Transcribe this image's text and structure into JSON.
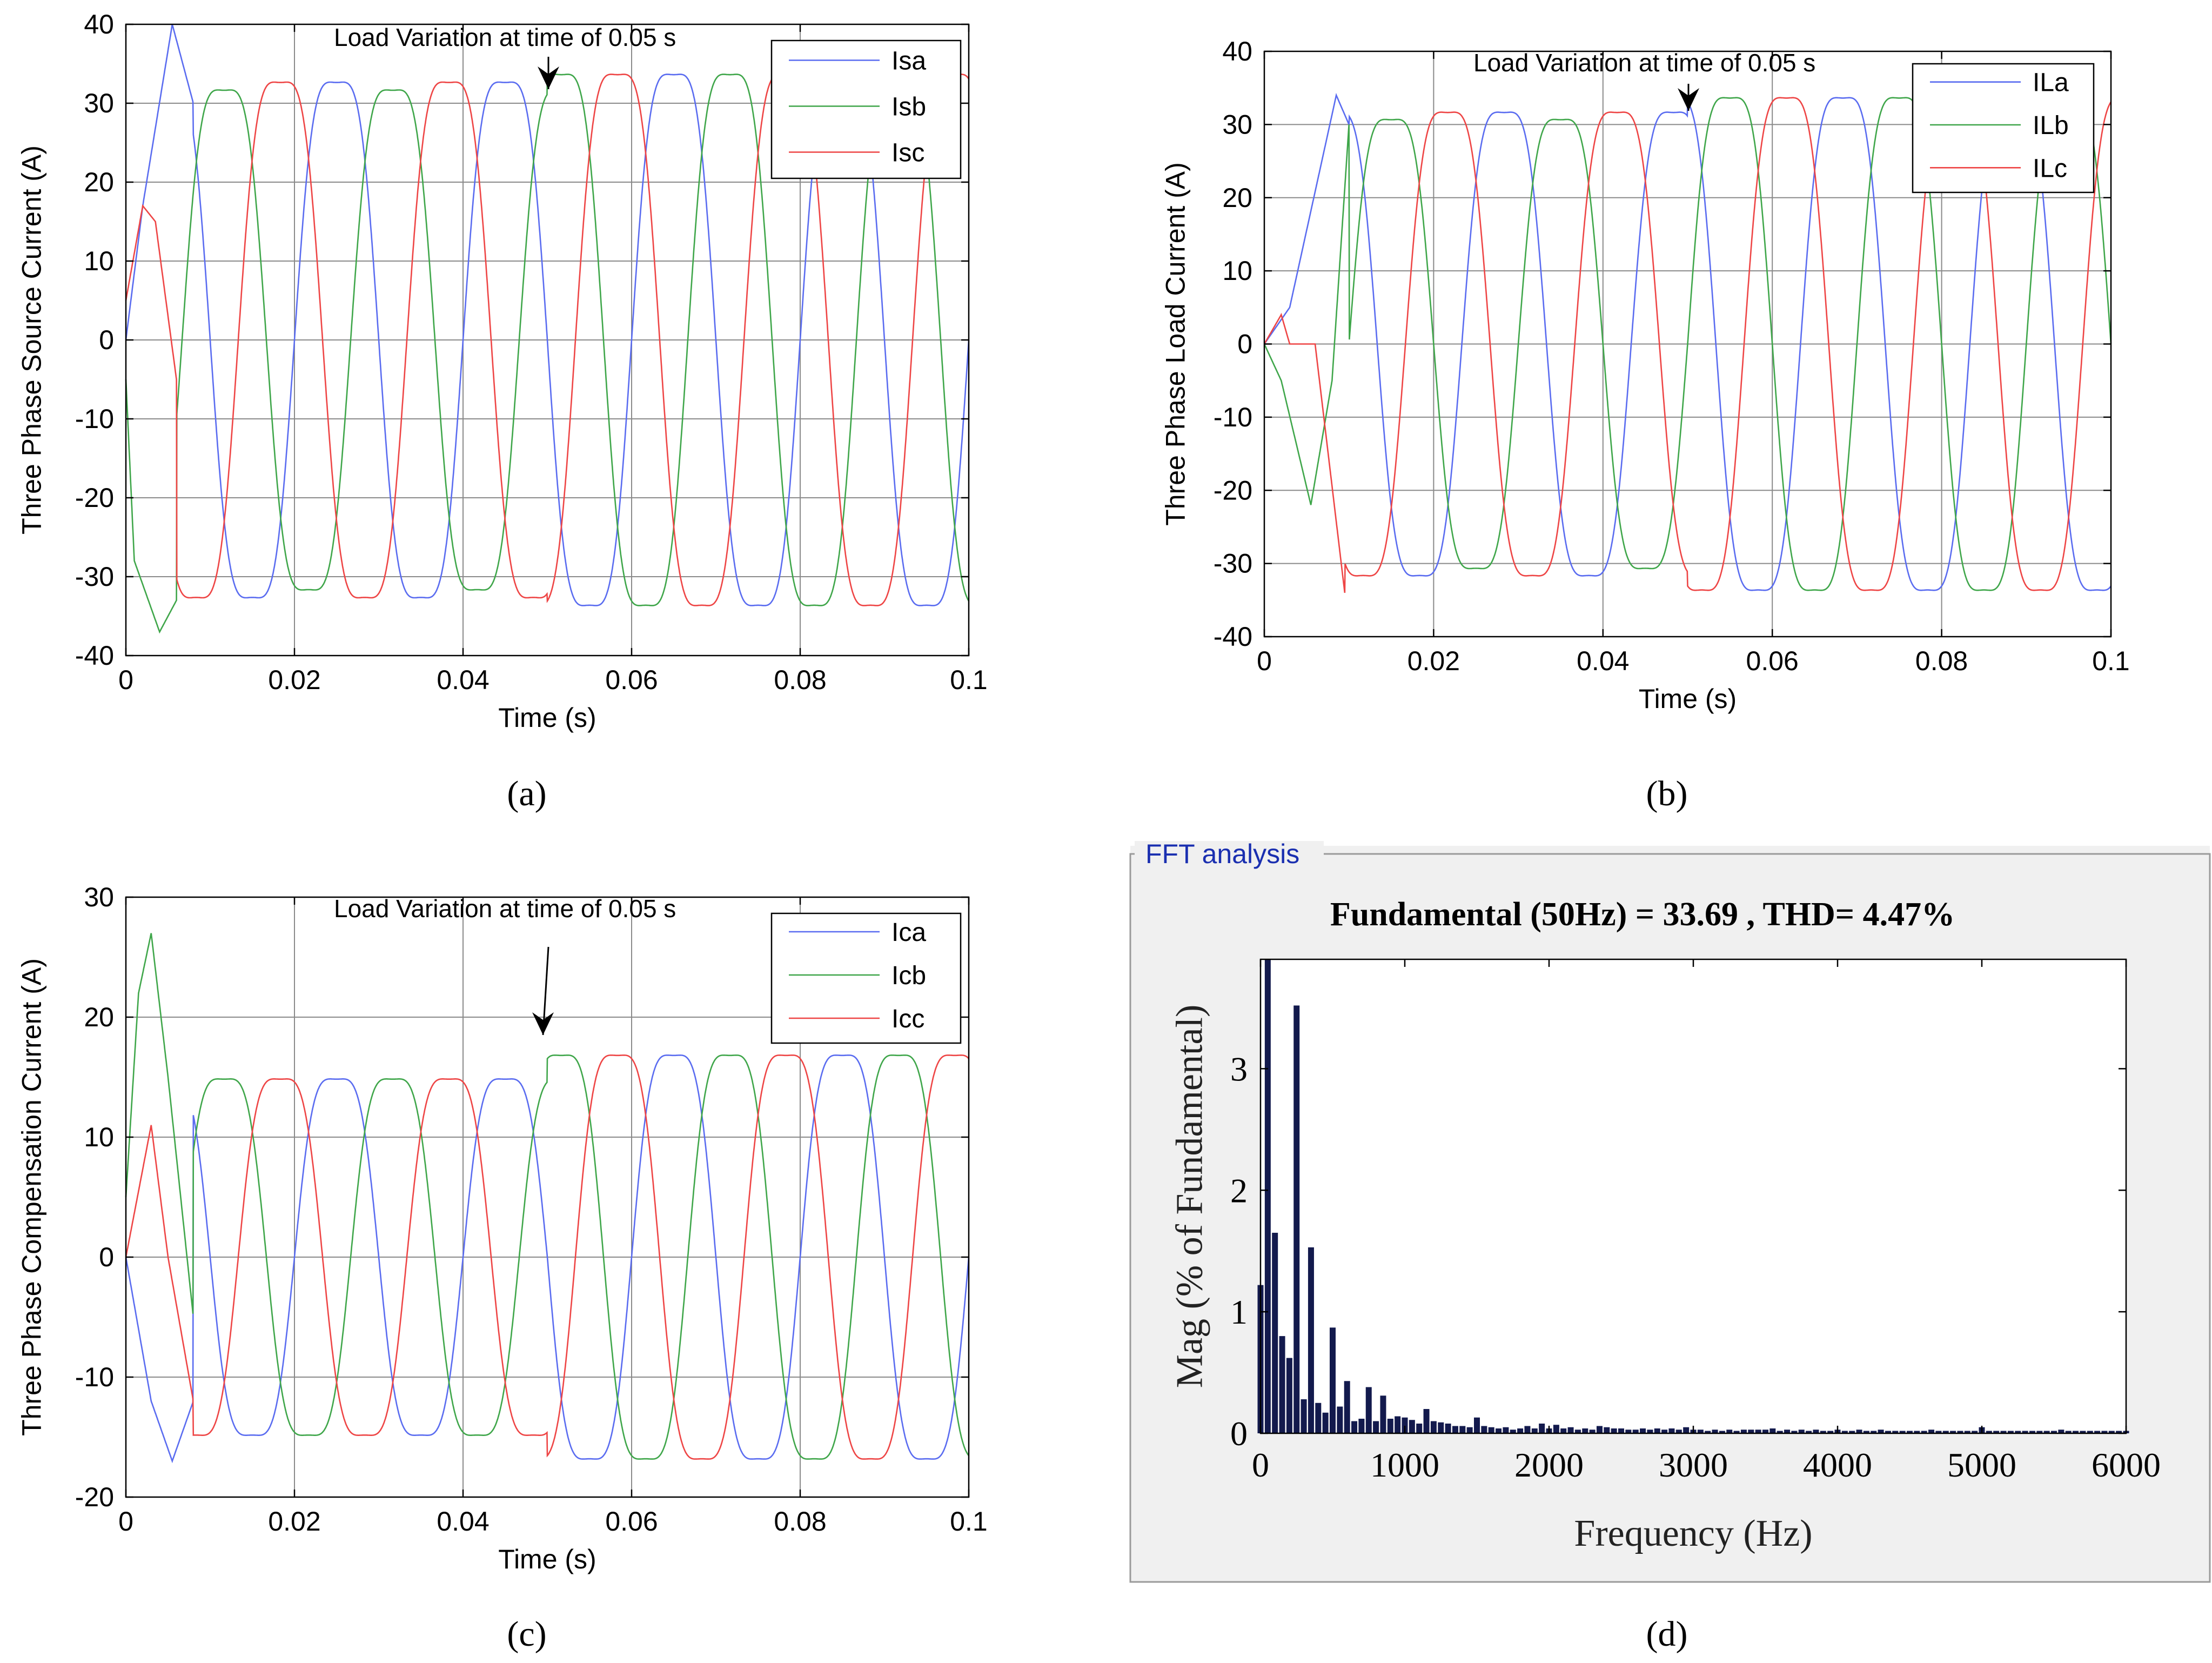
{
  "captions": {
    "a": "(a)",
    "b": "(b)",
    "c": "(c)",
    "d": "(d)"
  },
  "chart_data": [
    {
      "id": "a",
      "type": "line",
      "title": "",
      "annotation": "Load Variation at time of 0.05 s",
      "xlabel": "Time (s)",
      "ylabel": "Three Phase Source Current (A)",
      "xlim": [
        0,
        0.1
      ],
      "ylim": [
        -40,
        40
      ],
      "xticks": [
        0,
        0.02,
        0.04,
        0.06,
        0.08,
        0.1
      ],
      "xtick_labels": [
        "0",
        "0.02",
        "0.04",
        "0.06",
        "0.08",
        "0.1"
      ],
      "yticks": [
        40,
        30,
        20,
        10,
        0,
        -10,
        -20,
        -30,
        -40
      ],
      "ytick_labels": [
        "40",
        "30",
        "20",
        "10",
        "0",
        "-10",
        "-20",
        "-30",
        "-40"
      ],
      "grid": true,
      "legend": "top-right",
      "frequency_hz": 50,
      "series": [
        {
          "name": "Isa",
          "color": "#5a6cf0",
          "phase_deg": 0,
          "amp_before": 33,
          "amp_after": 34,
          "startup": [
            [
              0,
              0
            ],
            [
              0.002,
              17
            ],
            [
              0.0055,
              40
            ],
            [
              0.008,
              30
            ]
          ]
        },
        {
          "name": "Isb",
          "color": "#3fa64a",
          "phase_deg": -120,
          "amp_before": 32,
          "amp_after": 34,
          "startup": [
            [
              0,
              -5
            ],
            [
              0.001,
              -28
            ],
            [
              0.004,
              -37
            ],
            [
              0.006,
              -33
            ]
          ]
        },
        {
          "name": "Isc",
          "color": "#ee4545",
          "phase_deg": 120,
          "amp_before": 33,
          "amp_after": 34,
          "startup": [
            [
              0,
              5
            ],
            [
              0.002,
              17
            ],
            [
              0.0035,
              15
            ],
            [
              0.006,
              -5
            ]
          ]
        }
      ]
    },
    {
      "id": "b",
      "type": "line",
      "title": "",
      "annotation": "Load Variation at time of 0.05 s",
      "xlabel": "Time (s)",
      "ylabel": "Three Phase Load Current (A)",
      "xlim": [
        0,
        0.1
      ],
      "ylim": [
        -40,
        40
      ],
      "xticks": [
        0,
        0.02,
        0.04,
        0.06,
        0.08,
        0.1
      ],
      "xtick_labels": [
        "0",
        "0.02",
        "0.04",
        "0.06",
        "0.08",
        "0.1"
      ],
      "yticks": [
        40,
        30,
        20,
        10,
        0,
        -10,
        -20,
        -30,
        -40
      ],
      "ytick_labels": [
        "40",
        "30",
        "20",
        "10",
        "0",
        "-10",
        "-20",
        "-30",
        "-40"
      ],
      "grid": true,
      "legend": "top-right",
      "frequency_hz": 50,
      "series": [
        {
          "name": "ILa",
          "color": "#5a6cf0",
          "phase_deg": -60,
          "amp_before": 32,
          "amp_after": 34,
          "startup": [
            [
              0,
              0
            ],
            [
              0.003,
              5
            ],
            [
              0.0085,
              34
            ],
            [
              0.01,
              30
            ]
          ]
        },
        {
          "name": "ILb",
          "color": "#3fa64a",
          "phase_deg": 180,
          "amp_before": 31,
          "amp_after": 34,
          "startup": [
            [
              0,
              0
            ],
            [
              0.002,
              -5
            ],
            [
              0.0055,
              -22
            ],
            [
              0.008,
              -5
            ],
            [
              0.01,
              30
            ]
          ]
        },
        {
          "name": "ILc",
          "color": "#ee4545",
          "phase_deg": 60,
          "amp_before": 32,
          "amp_after": 34,
          "startup": [
            [
              0,
              0
            ],
            [
              0.002,
              4
            ],
            [
              0.003,
              0
            ],
            [
              0.006,
              0
            ],
            [
              0.0095,
              -34
            ]
          ]
        }
      ]
    },
    {
      "id": "c",
      "type": "line",
      "title": "",
      "annotation": "Load Variation at time of 0.05 s",
      "xlabel": "Time (s)",
      "ylabel": "Three Phase Compensation Current (A)",
      "xlim": [
        0,
        0.1
      ],
      "ylim": [
        -20,
        30
      ],
      "xticks": [
        0,
        0.02,
        0.04,
        0.06,
        0.08,
        0.1
      ],
      "xtick_labels": [
        "0",
        "0.02",
        "0.04",
        "0.06",
        "0.08",
        "0.1"
      ],
      "yticks": [
        30,
        20,
        10,
        0,
        -10,
        -20
      ],
      "ytick_labels": [
        "30",
        "20",
        "10",
        "0",
        "-10",
        "-20"
      ],
      "grid": true,
      "legend": "top-right",
      "frequency_hz": 50,
      "series": [
        {
          "name": "Ica",
          "color": "#5a6cf0",
          "phase_deg": 0,
          "amp_before": 15,
          "amp_after": 17,
          "startup": [
            [
              0,
              0
            ],
            [
              0.003,
              -12
            ],
            [
              0.0055,
              -17
            ],
            [
              0.008,
              -12
            ]
          ]
        },
        {
          "name": "Icb",
          "color": "#3fa64a",
          "phase_deg": -120,
          "amp_before": 15,
          "amp_after": 17,
          "startup": [
            [
              0,
              5
            ],
            [
              0.0015,
              22
            ],
            [
              0.003,
              27
            ],
            [
              0.005,
              15
            ],
            [
              0.008,
              -5
            ]
          ]
        },
        {
          "name": "Icc",
          "color": "#ee4545",
          "phase_deg": 120,
          "amp_before": 15,
          "amp_after": 17,
          "startup": [
            [
              0,
              0
            ],
            [
              0.003,
              11
            ],
            [
              0.005,
              0
            ],
            [
              0.008,
              -12
            ]
          ]
        }
      ]
    },
    {
      "id": "d",
      "type": "bar",
      "group_label": "FFT analysis",
      "title": "Fundamental (50Hz) = 33.69 , THD= 4.47%",
      "xlabel": "Frequency (Hz)",
      "ylabel": "Mag (% of Fundamental)",
      "xlim": [
        0,
        6000
      ],
      "ylim": [
        0,
        3.9
      ],
      "xticks": [
        0,
        1000,
        2000,
        3000,
        4000,
        5000,
        6000
      ],
      "xtick_labels": [
        "0",
        "1000",
        "2000",
        "3000",
        "4000",
        "5000",
        "6000"
      ],
      "yticks": [
        0,
        1,
        2,
        3
      ],
      "ytick_labels": [
        "0",
        "1",
        "2",
        "3"
      ],
      "bar_color": "#131a4d",
      "x": [
        0,
        50,
        100,
        150,
        200,
        250,
        300,
        350,
        400,
        450,
        500,
        550,
        600,
        650,
        700,
        750,
        800,
        850,
        900,
        950,
        1000,
        1050,
        1100,
        1150,
        1200,
        1250,
        1300,
        1350,
        1400,
        1450,
        1500,
        1550,
        1600,
        1650,
        1700,
        1750,
        1800,
        1850,
        1900,
        1950,
        2000,
        2050,
        2100,
        2150,
        2200,
        2250,
        2300,
        2350,
        2400,
        2450,
        2500,
        2550,
        2600,
        2650,
        2700,
        2750,
        2800,
        2850,
        2900,
        2950,
        3000,
        3050,
        3100,
        3150,
        3200,
        3250,
        3300,
        3350,
        3400,
        3450,
        3500,
        3550,
        3600,
        3650,
        3700,
        3750,
        3800,
        3850,
        3900,
        3950,
        4000,
        4050,
        4100,
        4150,
        4200,
        4250,
        4300,
        4350,
        4400,
        4450,
        4500,
        4550,
        4600,
        4650,
        4700,
        4750,
        4800,
        4850,
        4900,
        4950,
        5000,
        5050,
        5100,
        5150,
        5200,
        5250,
        5300,
        5350,
        5400,
        5450,
        5500,
        5550,
        5600,
        5650,
        5700,
        5750,
        5800,
        5850,
        5900,
        5950,
        6000
      ],
      "values": [
        1.22,
        3.9,
        1.65,
        0.8,
        0.62,
        3.52,
        0.28,
        1.53,
        0.25,
        0.17,
        0.87,
        0.22,
        0.43,
        0.1,
        0.12,
        0.38,
        0.1,
        0.31,
        0.12,
        0.14,
        0.13,
        0.11,
        0.08,
        0.2,
        0.1,
        0.09,
        0.08,
        0.06,
        0.06,
        0.05,
        0.13,
        0.06,
        0.05,
        0.04,
        0.05,
        0.03,
        0.04,
        0.06,
        0.04,
        0.08,
        0.04,
        0.07,
        0.04,
        0.05,
        0.03,
        0.04,
        0.03,
        0.06,
        0.05,
        0.04,
        0.04,
        0.03,
        0.03,
        0.04,
        0.03,
        0.04,
        0.03,
        0.04,
        0.03,
        0.05,
        0.03,
        0.03,
        0.02,
        0.03,
        0.02,
        0.03,
        0.02,
        0.03,
        0.03,
        0.03,
        0.03,
        0.04,
        0.02,
        0.03,
        0.02,
        0.03,
        0.02,
        0.03,
        0.02,
        0.02,
        0.03,
        0.02,
        0.02,
        0.03,
        0.02,
        0.02,
        0.03,
        0.02,
        0.02,
        0.02,
        0.02,
        0.02,
        0.02,
        0.03,
        0.02,
        0.02,
        0.02,
        0.02,
        0.02,
        0.02,
        0.05,
        0.02,
        0.02,
        0.02,
        0.02,
        0.02,
        0.02,
        0.02,
        0.02,
        0.02,
        0.02,
        0.03,
        0.02,
        0.02,
        0.02,
        0.02,
        0.02,
        0.02,
        0.02,
        0.02,
        0.02
      ]
    }
  ]
}
